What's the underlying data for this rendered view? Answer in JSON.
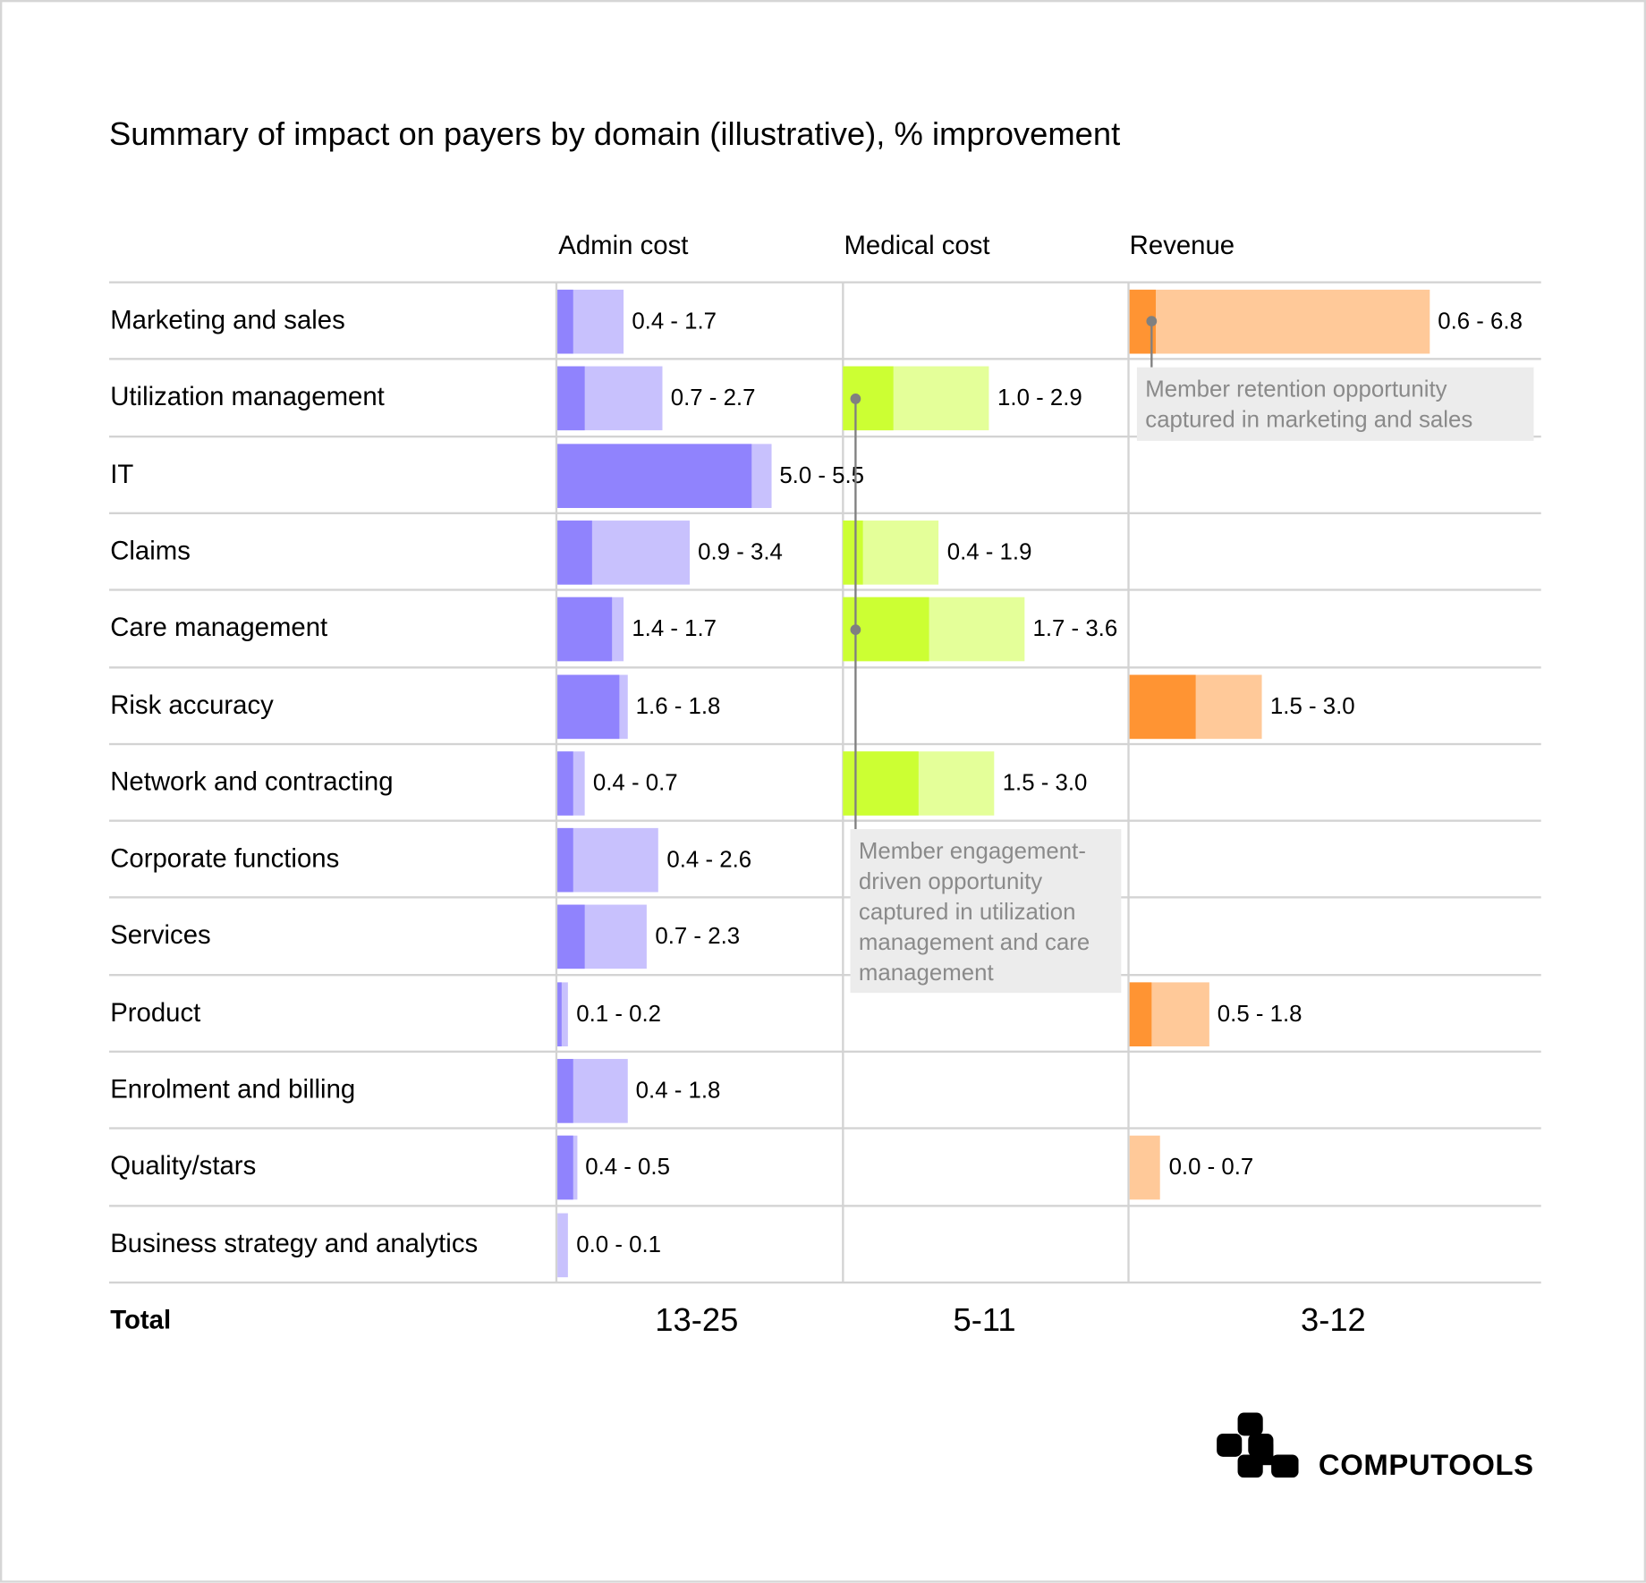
{
  "chart_data": {
    "type": "bar",
    "title": "Summary of impact on payers by domain (illustrative),",
    "title_unit": "% improvement",
    "columns": [
      "Admin cost",
      "Medical cost",
      "Revenue"
    ],
    "colors": {
      "admin": {
        "low": "#9083FD",
        "high": "#C8C1FD"
      },
      "medical": {
        "low": "#CCFF33",
        "high": "#E4FF99"
      },
      "revenue": {
        "low": "#FF9433",
        "high": "#FFC999"
      }
    },
    "rows": [
      {
        "label": "Marketing and sales",
        "admin": [
          0.4,
          1.7
        ],
        "medical": null,
        "revenue": [
          0.6,
          6.8
        ]
      },
      {
        "label": "Utilization management",
        "admin": [
          0.7,
          2.7
        ],
        "medical": [
          1.0,
          2.9
        ],
        "revenue": null
      },
      {
        "label": "IT",
        "admin": [
          5.0,
          5.5
        ],
        "medical": null,
        "revenue": null
      },
      {
        "label": "Claims",
        "admin": [
          0.9,
          3.4
        ],
        "medical": [
          0.4,
          1.9
        ],
        "revenue": null
      },
      {
        "label": "Care management",
        "admin": [
          1.4,
          1.7
        ],
        "medical": [
          1.7,
          3.6
        ],
        "revenue": null
      },
      {
        "label": "Risk accuracy",
        "admin": [
          1.6,
          1.8
        ],
        "medical": null,
        "revenue": [
          1.5,
          3.0
        ]
      },
      {
        "label": "Network and contracting",
        "admin": [
          0.4,
          0.7
        ],
        "medical": [
          1.5,
          3.0
        ],
        "revenue": null
      },
      {
        "label": "Corporate functions",
        "admin": [
          0.4,
          2.6
        ],
        "medical": null,
        "revenue": null
      },
      {
        "label": "Services",
        "admin": [
          0.7,
          2.3
        ],
        "medical": null,
        "revenue": null
      },
      {
        "label": "Product",
        "admin": [
          0.1,
          0.2
        ],
        "medical": null,
        "revenue": [
          0.5,
          1.8
        ]
      },
      {
        "label": "Enrolment and billing",
        "admin": [
          0.4,
          1.8
        ],
        "medical": null,
        "revenue": null
      },
      {
        "label": "Quality/stars",
        "admin": [
          0.4,
          0.5
        ],
        "medical": null,
        "revenue": [
          0.0,
          0.7
        ]
      },
      {
        "label": "Business strategy and analytics",
        "admin": [
          0.0,
          0.1
        ],
        "medical": null,
        "revenue": null
      }
    ],
    "total": {
      "label": "Total",
      "admin": "13-25",
      "medical": "5-11",
      "revenue": "3-12"
    },
    "annotations": [
      "Member retention opportunity captured in marketing and sales",
      "Member engagement-driven opportunity captured in utilization management and care management"
    ]
  },
  "brand": "COMPUTOOLS"
}
